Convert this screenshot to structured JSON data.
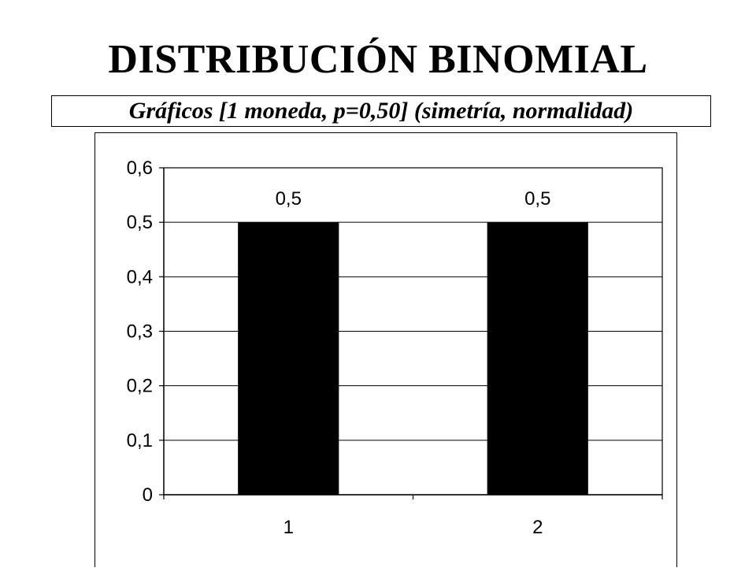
{
  "title": "DISTRIBUCIÓN BINOMIAL",
  "subtitle": "Gráficos [1 moneda, p=0,50] (simetría, normalidad)",
  "chart_data": {
    "type": "bar",
    "categories": [
      "1",
      "2"
    ],
    "values": [
      0.5,
      0.5
    ],
    "data_labels": [
      "0,5",
      "0,5"
    ],
    "title": "",
    "xlabel": "",
    "ylabel": "",
    "ylim": [
      0,
      0.6
    ],
    "yticks": [
      0,
      0.1,
      0.2,
      0.3,
      0.4,
      0.5,
      0.6
    ],
    "ytick_labels": [
      "0",
      "0,1",
      "0,2",
      "0,3",
      "0,4",
      "0,5",
      "0,6"
    ],
    "grid": true,
    "legend": "none",
    "bar_color": "#000000"
  }
}
